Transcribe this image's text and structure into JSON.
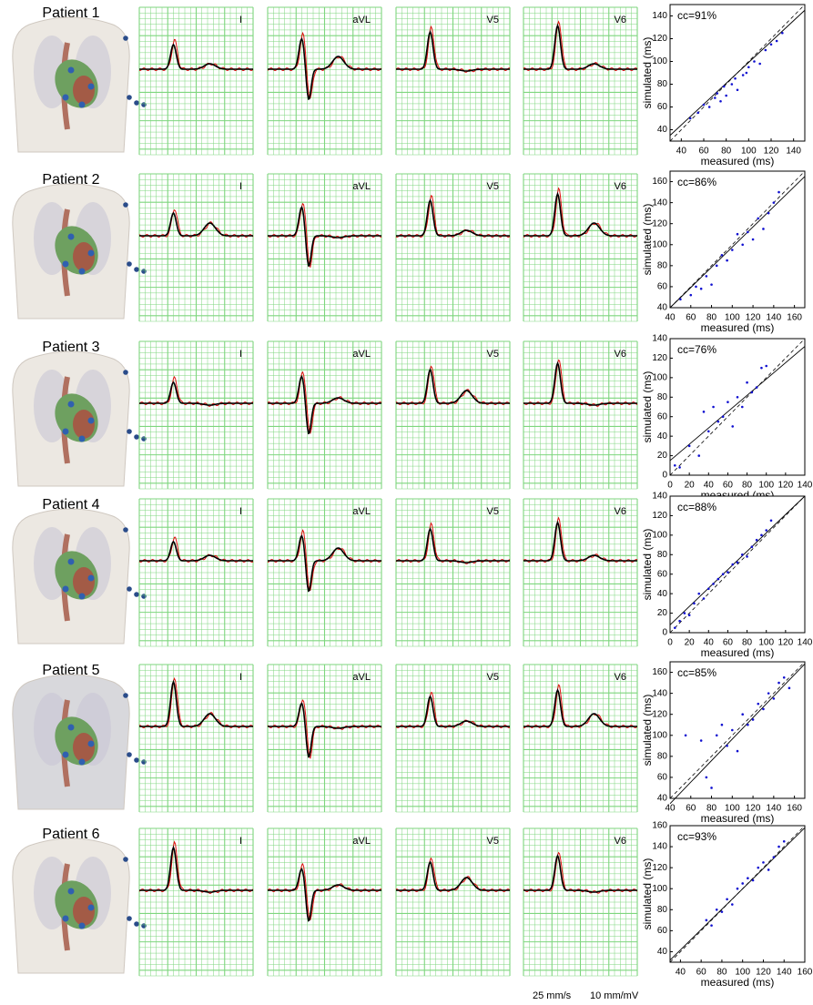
{
  "figure": {
    "footer": [
      "25 mm/s",
      "10 mm/mV"
    ],
    "rows": [
      {
        "label": "Patient 1",
        "leads": [
          "I",
          "aVL",
          "V5",
          "V6"
        ],
        "scatter": {
          "type": "scatter",
          "annotation": "cc=91%",
          "xlabel": "measured (ms)",
          "ylabel": "simulated (ms)",
          "color": "#1010d0",
          "xlim": [
            30,
            150
          ],
          "ylim": [
            30,
            150
          ],
          "xticks": [
            40,
            60,
            80,
            100,
            120,
            140
          ],
          "yticks": [
            40,
            60,
            80,
            100,
            120,
            140
          ],
          "x": [
            48,
            55,
            60,
            65,
            70,
            72,
            75,
            78,
            80,
            85,
            88,
            90,
            95,
            98,
            100,
            105,
            110,
            115,
            120,
            125,
            130
          ],
          "y": [
            50,
            55,
            62,
            60,
            68,
            72,
            65,
            78,
            70,
            80,
            85,
            75,
            88,
            90,
            95,
            100,
            98,
            110,
            115,
            118,
            125
          ],
          "fit": {
            "x": [
              30,
              150
            ],
            "y": [
              35,
              145
            ]
          }
        }
      },
      {
        "label": "Patient 2",
        "leads": [
          "I",
          "aVL",
          "V5",
          "V6"
        ],
        "scatter": {
          "type": "scatter",
          "annotation": "cc=86%",
          "xlabel": "measured (ms)",
          "ylabel": "simulated (ms)",
          "color": "#1010d0",
          "xlim": [
            40,
            170
          ],
          "ylim": [
            40,
            170
          ],
          "xticks": [
            40,
            60,
            80,
            100,
            120,
            140,
            160
          ],
          "yticks": [
            40,
            60,
            80,
            100,
            120,
            140,
            160
          ],
          "x": [
            50,
            60,
            65,
            70,
            75,
            80,
            85,
            90,
            95,
            100,
            105,
            110,
            115,
            120,
            125,
            130,
            135,
            140,
            145
          ],
          "y": [
            48,
            52,
            60,
            58,
            70,
            62,
            80,
            90,
            85,
            95,
            110,
            100,
            112,
            105,
            125,
            115,
            130,
            140,
            150
          ],
          "fit": {
            "x": [
              40,
              170
            ],
            "y": [
              40,
              165
            ]
          }
        }
      },
      {
        "label": "Patient 3",
        "leads": [
          "I",
          "aVL",
          "V5",
          "V6"
        ],
        "scatter": {
          "type": "scatter",
          "annotation": "cc=76%",
          "xlabel": "measured (ms)",
          "ylabel": "simulated (ms)",
          "color": "#1010d0",
          "xlim": [
            0,
            140
          ],
          "ylim": [
            0,
            140
          ],
          "xticks": [
            0,
            20,
            40,
            60,
            80,
            100,
            120,
            140
          ],
          "yticks": [
            0,
            20,
            40,
            60,
            80,
            100,
            120,
            140
          ],
          "x": [
            5,
            10,
            20,
            30,
            35,
            40,
            45,
            50,
            55,
            60,
            65,
            70,
            75,
            80,
            85,
            90,
            95,
            100
          ],
          "y": [
            10,
            8,
            30,
            20,
            65,
            45,
            70,
            55,
            60,
            75,
            50,
            80,
            70,
            95,
            85,
            90,
            110,
            112
          ],
          "fit": {
            "x": [
              0,
              140
            ],
            "y": [
              15,
              132
            ]
          }
        }
      },
      {
        "label": "Patient 4",
        "leads": [
          "I",
          "aVL",
          "V5",
          "V6"
        ],
        "scatter": {
          "type": "scatter",
          "annotation": "cc=88%",
          "xlabel": "measured (ms)",
          "ylabel": "simulated (ms)",
          "color": "#1010d0",
          "xlim": [
            0,
            140
          ],
          "ylim": [
            0,
            140
          ],
          "xticks": [
            0,
            20,
            40,
            60,
            80,
            100,
            120,
            140
          ],
          "yticks": [
            0,
            20,
            40,
            60,
            80,
            100,
            120,
            140
          ],
          "x": [
            5,
            10,
            15,
            20,
            25,
            30,
            35,
            40,
            45,
            50,
            55,
            60,
            65,
            70,
            75,
            80,
            85,
            90,
            95,
            100,
            105
          ],
          "y": [
            5,
            12,
            20,
            18,
            30,
            40,
            35,
            45,
            50,
            55,
            60,
            62,
            70,
            72,
            80,
            78,
            88,
            95,
            100,
            105,
            115
          ],
          "fit": {
            "x": [
              0,
              140
            ],
            "y": [
              8,
              140
            ]
          }
        }
      },
      {
        "label": "Patient 5",
        "leads": [
          "I",
          "aVL",
          "V5",
          "V6"
        ],
        "scatter": {
          "type": "scatter",
          "annotation": "cc=85%",
          "xlabel": "measured (ms)",
          "ylabel": "simulated (ms)",
          "color": "#1010d0",
          "xlim": [
            40,
            170
          ],
          "ylim": [
            40,
            170
          ],
          "xticks": [
            40,
            60,
            80,
            100,
            120,
            140,
            160
          ],
          "yticks": [
            40,
            60,
            80,
            100,
            120,
            140,
            160
          ],
          "x": [
            55,
            70,
            75,
            80,
            85,
            90,
            95,
            100,
            105,
            110,
            115,
            120,
            125,
            130,
            135,
            140,
            145,
            150,
            155
          ],
          "y": [
            100,
            95,
            60,
            50,
            100,
            110,
            90,
            105,
            85,
            120,
            110,
            115,
            130,
            125,
            140,
            135,
            150,
            155,
            145
          ],
          "fit": {
            "x": [
              40,
              170
            ],
            "y": [
              35,
              168
            ]
          }
        }
      },
      {
        "label": "Patient 6",
        "leads": [
          "I",
          "aVL",
          "V5",
          "V6"
        ],
        "scatter": {
          "type": "scatter",
          "annotation": "cc=93%",
          "xlabel": "measured (ms)",
          "ylabel": "simulated (ms)",
          "color": "#1010d0",
          "xlim": [
            30,
            160
          ],
          "ylim": [
            30,
            160
          ],
          "xticks": [
            40,
            60,
            80,
            100,
            120,
            140,
            160
          ],
          "yticks": [
            40,
            60,
            80,
            100,
            120,
            140,
            160
          ],
          "x": [
            65,
            70,
            75,
            80,
            85,
            90,
            95,
            100,
            105,
            110,
            115,
            120,
            125,
            130,
            135,
            140
          ],
          "y": [
            70,
            65,
            80,
            78,
            90,
            85,
            100,
            105,
            110,
            108,
            120,
            125,
            118,
            130,
            140,
            145
          ],
          "fit": {
            "x": [
              30,
              160
            ],
            "y": [
              32,
              158
            ]
          }
        }
      }
    ]
  }
}
